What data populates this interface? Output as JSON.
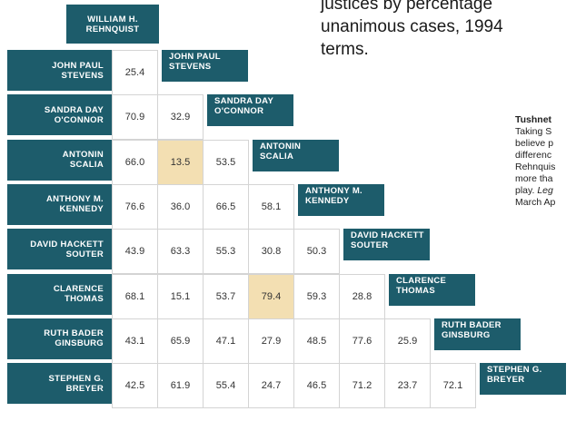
{
  "heading_lines": [
    "justices by percentage",
    "unanimous cases, 1994",
    "terms."
  ],
  "sidebar": {
    "title": "Tushnet",
    "lines": [
      [
        "Taking S"
      ],
      [
        "believe p"
      ],
      [
        "differenc"
      ],
      [
        "Rehnquis"
      ],
      [
        "more tha"
      ],
      [
        "play. ",
        "Leg"
      ],
      [
        "March Ap"
      ]
    ]
  },
  "table": {
    "top_header": [
      "WILLIAM H.",
      "REHNQUIST"
    ],
    "rows": [
      {
        "name": [
          "JOHN PAUL",
          "STEVENS"
        ],
        "cells": [
          {
            "text": "25.4"
          }
        ]
      },
      {
        "name": [
          "SANDRA DAY",
          "O'CONNOR"
        ],
        "cells": [
          {
            "text": "70.9"
          },
          {
            "text": "32.9"
          }
        ]
      },
      {
        "name": [
          "ANTONIN",
          "SCALIA"
        ],
        "cells": [
          {
            "text": "66.0"
          },
          {
            "text": "13.5",
            "highlight": true
          },
          {
            "text": "53.5"
          }
        ]
      },
      {
        "name": [
          "ANTHONY M.",
          "KENNEDY"
        ],
        "cells": [
          {
            "text": "76.6"
          },
          {
            "text": "36.0"
          },
          {
            "text": "66.5"
          },
          {
            "text": "58.1"
          }
        ]
      },
      {
        "name": [
          "DAVID HACKETT",
          "SOUTER"
        ],
        "cells": [
          {
            "text": "43.9"
          },
          {
            "text": "63.3"
          },
          {
            "text": "55.3"
          },
          {
            "text": "30.8"
          },
          {
            "text": "50.3"
          }
        ]
      },
      {
        "name": [
          "CLARENCE",
          "THOMAS"
        ],
        "cells": [
          {
            "text": "68.1"
          },
          {
            "text": "15.1"
          },
          {
            "text": "53.7"
          },
          {
            "text": "79.4",
            "highlight": true
          },
          {
            "text": "59.3"
          },
          {
            "text": "28.8"
          }
        ]
      },
      {
        "name": [
          "RUTH BADER",
          "GINSBURG"
        ],
        "cells": [
          {
            "text": "43.1"
          },
          {
            "text": "65.9"
          },
          {
            "text": "47.1"
          },
          {
            "text": "27.9"
          },
          {
            "text": "48.5"
          },
          {
            "text": "77.6"
          },
          {
            "text": "25.9"
          }
        ]
      },
      {
        "name": [
          "STEPHEN G.",
          "BREYER"
        ],
        "cells": [
          {
            "text": "42.5"
          },
          {
            "text": "61.9"
          },
          {
            "text": "55.4"
          },
          {
            "text": "24.7"
          },
          {
            "text": "46.5"
          },
          {
            "text": "71.2"
          },
          {
            "text": "23.7"
          },
          {
            "text": "72.1"
          }
        ]
      }
    ]
  }
}
